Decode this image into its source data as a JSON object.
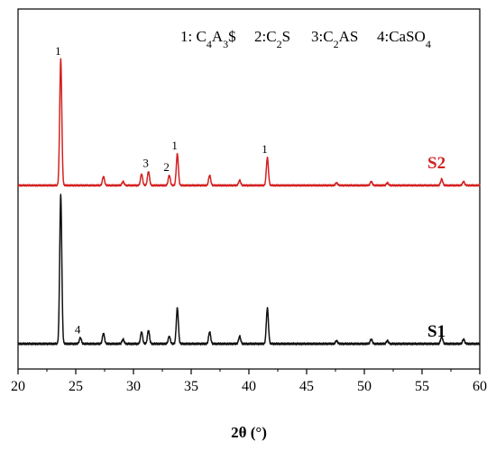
{
  "chart_data": {
    "type": "line",
    "xlabel": "2θ (°)",
    "xlim": [
      20,
      60
    ],
    "x_ticks": [
      "20",
      "25",
      "30",
      "35",
      "40",
      "45",
      "50",
      "55",
      "60"
    ],
    "legend": [
      {
        "number": "1",
        "base": "C",
        "sub1": "4",
        "mid": "A",
        "sub2": "3",
        "tail": "$"
      },
      {
        "number": "2",
        "base": "C",
        "sub1": "2",
        "mid": "S",
        "sub2": "",
        "tail": ""
      },
      {
        "number": "3",
        "base": "C",
        "sub1": "2",
        "mid": "AS",
        "sub2": "",
        "tail": ""
      },
      {
        "number": "4",
        "base": "CaSO",
        "sub1": "4",
        "mid": "",
        "sub2": "",
        "tail": ""
      }
    ],
    "series": [
      {
        "name": "S2",
        "color": "#d42121",
        "baseline": 0.08,
        "peaks": [
          {
            "x": 23.7,
            "h": 1.0
          },
          {
            "x": 27.4,
            "h": 0.07
          },
          {
            "x": 29.1,
            "h": 0.03
          },
          {
            "x": 30.7,
            "h": 0.09
          },
          {
            "x": 31.3,
            "h": 0.11
          },
          {
            "x": 33.1,
            "h": 0.08
          },
          {
            "x": 33.8,
            "h": 0.25
          },
          {
            "x": 36.6,
            "h": 0.08
          },
          {
            "x": 39.2,
            "h": 0.04
          },
          {
            "x": 41.6,
            "h": 0.22
          },
          {
            "x": 47.6,
            "h": 0.02
          },
          {
            "x": 50.6,
            "h": 0.03
          },
          {
            "x": 52.0,
            "h": 0.02
          },
          {
            "x": 56.7,
            "h": 0.05
          },
          {
            "x": 58.6,
            "h": 0.03
          }
        ],
        "annotations": [
          {
            "text": "1",
            "x": 23.7
          },
          {
            "text": "3",
            "x": 31.3
          },
          {
            "text": "2",
            "x": 33.1
          },
          {
            "text": "1",
            "x": 33.8
          },
          {
            "text": "1",
            "x": 41.6
          }
        ]
      },
      {
        "name": "S1",
        "color": "#111111",
        "baseline": 0.08,
        "peaks": [
          {
            "x": 23.7,
            "h": 1.0
          },
          {
            "x": 25.4,
            "h": 0.04
          },
          {
            "x": 27.4,
            "h": 0.07
          },
          {
            "x": 29.1,
            "h": 0.03
          },
          {
            "x": 30.7,
            "h": 0.08
          },
          {
            "x": 31.3,
            "h": 0.09
          },
          {
            "x": 33.1,
            "h": 0.05
          },
          {
            "x": 33.8,
            "h": 0.24
          },
          {
            "x": 36.6,
            "h": 0.08
          },
          {
            "x": 39.2,
            "h": 0.05
          },
          {
            "x": 41.6,
            "h": 0.24
          },
          {
            "x": 47.6,
            "h": 0.02
          },
          {
            "x": 50.6,
            "h": 0.03
          },
          {
            "x": 52.0,
            "h": 0.02
          },
          {
            "x": 56.7,
            "h": 0.05
          },
          {
            "x": 58.6,
            "h": 0.03
          }
        ],
        "annotations": [
          {
            "text": "4",
            "x": 25.4
          }
        ]
      }
    ]
  }
}
